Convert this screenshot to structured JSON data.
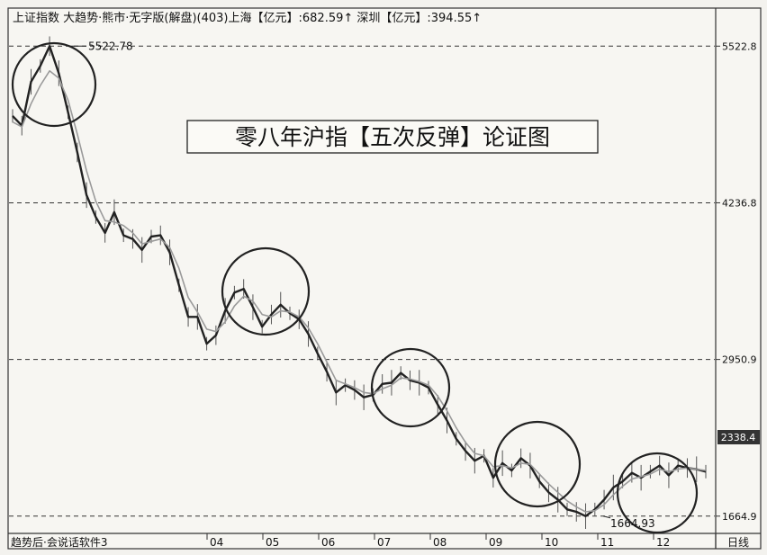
{
  "header": {
    "text": "上证指数  大趋势·熊市·无字版(解盘)(403)上海【亿元】:682.59↑  深圳【亿元】:394.55↑"
  },
  "footer": {
    "left_text": "趋势后·会说话软件3",
    "period_label": "日线"
  },
  "chart_data": {
    "type": "line",
    "title": "零八年沪指【五次反弹】论证图",
    "xlabel": "",
    "ylabel": "",
    "x_ticks": [
      "04",
      "05",
      "06",
      "07",
      "08",
      "09",
      "10",
      "11",
      "12"
    ],
    "y_ticks": [
      5522.8,
      4236.8,
      2950.9,
      1664.9
    ],
    "ylim": [
      1560,
      5680
    ],
    "grid": "dashed horizontal at y ticks",
    "current_value_label": "2338.4",
    "annotations": [
      {
        "text": "5522.78",
        "at": "peak"
      },
      {
        "text": "1664.93",
        "at": "trough"
      }
    ],
    "highlight_circles": 5,
    "series": [
      {
        "values": [
          4950,
          4870,
          5230,
          5360,
          5522.78,
          5300,
          4980,
          4650,
          4300,
          4120,
          3990,
          4160,
          3970,
          3940,
          3850,
          3960,
          3970,
          3830,
          3560,
          3300,
          3300,
          3080,
          3150,
          3350,
          3500,
          3530,
          3380,
          3220,
          3320,
          3400,
          3330,
          3280,
          3160,
          3000,
          2850,
          2680,
          2740,
          2700,
          2640,
          2660,
          2750,
          2760,
          2840,
          2780,
          2760,
          2720,
          2580,
          2450,
          2300,
          2200,
          2120,
          2160,
          1980,
          2100,
          2040,
          2140,
          2080,
          1950,
          1860,
          1800,
          1720,
          1700,
          1664.93,
          1720,
          1800,
          1900,
          1950,
          2020,
          1980,
          2030,
          2080,
          2000,
          2080,
          2060,
          2050,
          2030
        ]
      },
      {
        "values": [
          4900,
          4860,
          5050,
          5200,
          5320,
          5260,
          5080,
          4800,
          4500,
          4250,
          4090,
          4080,
          4050,
          3990,
          3900,
          3920,
          3940,
          3870,
          3700,
          3460,
          3340,
          3200,
          3180,
          3260,
          3390,
          3470,
          3430,
          3320,
          3300,
          3350,
          3340,
          3300,
          3210,
          3080,
          2930,
          2780,
          2750,
          2720,
          2680,
          2670,
          2710,
          2740,
          2800,
          2790,
          2770,
          2740,
          2650,
          2530,
          2390,
          2270,
          2180,
          2160,
          2070,
          2080,
          2060,
          2100,
          2090,
          2010,
          1930,
          1860,
          1790,
          1740,
          1700,
          1710,
          1760,
          1840,
          1910,
          1970,
          1990,
          2010,
          2050,
          2030,
          2050,
          2060,
          2050,
          2040
        ]
      }
    ]
  }
}
